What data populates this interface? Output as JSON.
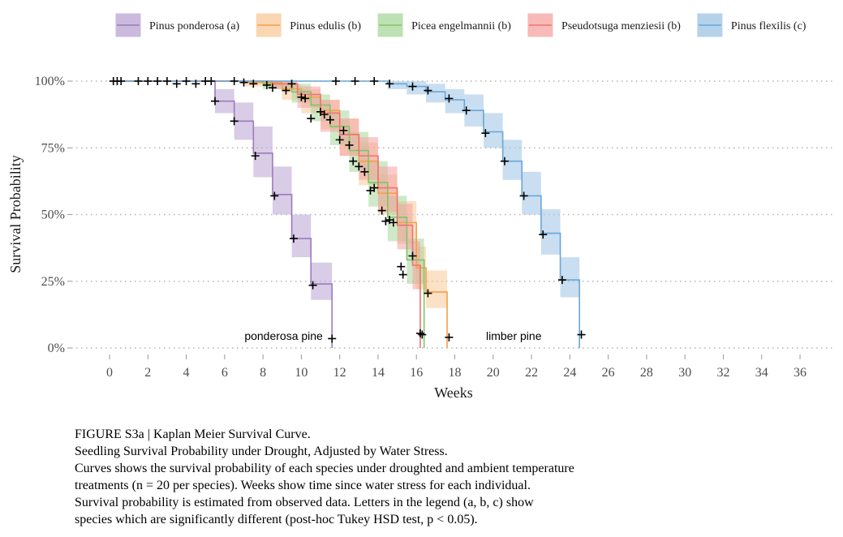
{
  "chart_data": {
    "type": "line",
    "subtype": "kaplan-meier step curves with confidence bands",
    "xlabel": "Weeks",
    "ylabel": "Survival Probability",
    "xlim": [
      -1.5,
      38
    ],
    "ylim": [
      0,
      1
    ],
    "xticks": [
      "0",
      "2",
      "4",
      "6",
      "8",
      "10",
      "12",
      "14",
      "16",
      "18",
      "20",
      "22",
      "24",
      "26",
      "28",
      "30",
      "32",
      "34",
      "36"
    ],
    "yticks": [
      "0%",
      "25%",
      "50%",
      "75%",
      "100%"
    ],
    "grid": "horizontal dotted",
    "legend_position": "top",
    "series": [
      {
        "name": "Pinus ponderosa (a)",
        "color": "#9a7bbf",
        "fill": "#b9a3d3",
        "steps": [
          [
            0,
            1.0
          ],
          [
            5.5,
            0.925
          ],
          [
            6.5,
            0.85
          ],
          [
            7.5,
            0.73
          ],
          [
            8.5,
            0.575
          ],
          [
            9.5,
            0.41
          ],
          [
            10.5,
            0.24
          ],
          [
            11.6,
            0.0
          ]
        ],
        "band": [
          [
            0,
            1.0,
            1.0
          ],
          [
            5.5,
            0.97,
            0.88
          ],
          [
            6.5,
            0.92,
            0.78
          ],
          [
            7.5,
            0.83,
            0.64
          ],
          [
            8.5,
            0.68,
            0.5
          ],
          [
            9.5,
            0.5,
            0.34
          ],
          [
            10.5,
            0.32,
            0.18
          ]
        ],
        "censor": [
          [
            0.2,
            1.0
          ],
          [
            0.4,
            1.0
          ],
          [
            0.6,
            1.0
          ],
          [
            1.5,
            1.0
          ],
          [
            2.0,
            1.0
          ],
          [
            2.5,
            1.0
          ],
          [
            3.0,
            1.0
          ],
          [
            3.5,
            0.99
          ],
          [
            4.0,
            1.0
          ],
          [
            4.5,
            0.99
          ],
          [
            5.0,
            1.0
          ],
          [
            5.3,
            1.0
          ],
          [
            5.5,
            0.925
          ],
          [
            6.5,
            0.85
          ],
          [
            7.6,
            0.72
          ],
          [
            8.6,
            0.57
          ],
          [
            9.6,
            0.41
          ],
          [
            10.6,
            0.235
          ],
          [
            11.6,
            0.035
          ]
        ]
      },
      {
        "name": "Pinus edulis (b)",
        "color": "#f5a04a",
        "fill": "#f8c898",
        "steps": [
          [
            0,
            1.0
          ],
          [
            7,
            0.995
          ],
          [
            9,
            0.97
          ],
          [
            10,
            0.94
          ],
          [
            11,
            0.89
          ],
          [
            12,
            0.8
          ],
          [
            13,
            0.7
          ],
          [
            14,
            0.58
          ],
          [
            15,
            0.47
          ],
          [
            16,
            0.3
          ],
          [
            16.5,
            0.21
          ],
          [
            17.6,
            0.0
          ]
        ],
        "band": [
          [
            0,
            1.0,
            1.0
          ],
          [
            7,
            1.0,
            0.98
          ],
          [
            9,
            0.99,
            0.93
          ],
          [
            10,
            0.97,
            0.88
          ],
          [
            11,
            0.93,
            0.82
          ],
          [
            12,
            0.86,
            0.72
          ],
          [
            13,
            0.77,
            0.61
          ],
          [
            14,
            0.65,
            0.5
          ],
          [
            15,
            0.55,
            0.39
          ],
          [
            16,
            0.38,
            0.22
          ],
          [
            16.5,
            0.29,
            0.15
          ]
        ],
        "censor": [
          [
            6.5,
            1.0
          ],
          [
            7.0,
            0.995
          ],
          [
            7.5,
            0.99
          ],
          [
            8.2,
            0.985
          ],
          [
            8.5,
            0.975
          ],
          [
            9.2,
            0.965
          ],
          [
            10.0,
            0.94
          ],
          [
            10.5,
            0.86
          ],
          [
            11.2,
            0.875
          ],
          [
            12.0,
            0.78
          ],
          [
            12.7,
            0.7
          ],
          [
            13.3,
            0.66
          ],
          [
            13.6,
            0.59
          ],
          [
            14.2,
            0.515
          ],
          [
            14.8,
            0.47
          ],
          [
            15.2,
            0.305
          ],
          [
            15.8,
            0.345
          ],
          [
            16.6,
            0.205
          ],
          [
            17.7,
            0.04
          ]
        ]
      },
      {
        "name": "Picea engelmannii (b)",
        "color": "#7fc56a",
        "fill": "#a8d79b",
        "steps": [
          [
            0,
            1.0
          ],
          [
            8,
            0.99
          ],
          [
            9.5,
            0.96
          ],
          [
            10.5,
            0.91
          ],
          [
            11.5,
            0.83
          ],
          [
            12.5,
            0.74
          ],
          [
            13.5,
            0.62
          ],
          [
            14.5,
            0.49
          ],
          [
            15.5,
            0.33
          ],
          [
            16.4,
            0.0
          ]
        ],
        "band": [
          [
            0,
            1.0,
            1.0
          ],
          [
            8,
            1.0,
            0.97
          ],
          [
            9.5,
            0.99,
            0.92
          ],
          [
            10.5,
            0.95,
            0.85
          ],
          [
            11.5,
            0.89,
            0.76
          ],
          [
            12.5,
            0.81,
            0.66
          ],
          [
            13.5,
            0.7,
            0.53
          ],
          [
            14.5,
            0.57,
            0.4
          ],
          [
            15.5,
            0.41,
            0.24
          ]
        ],
        "censor": [
          [
            9.5,
            0.99
          ],
          [
            11.0,
            0.885
          ],
          [
            12.2,
            0.815
          ],
          [
            13.0,
            0.68
          ],
          [
            14.6,
            0.48
          ],
          [
            16.2,
            0.055
          ]
        ]
      },
      {
        "name": "Pseudotsuga menziesii (b)",
        "color": "#ef7470",
        "fill": "#f4a3a0",
        "steps": [
          [
            0,
            1.0
          ],
          [
            8.5,
            0.99
          ],
          [
            9.8,
            0.95
          ],
          [
            11,
            0.88
          ],
          [
            12,
            0.8
          ],
          [
            13,
            0.72
          ],
          [
            14,
            0.6
          ],
          [
            15,
            0.46
          ],
          [
            15.8,
            0.31
          ],
          [
            16.2,
            0.0
          ]
        ],
        "band": [
          [
            0,
            1.0,
            1.0
          ],
          [
            8.5,
            1.0,
            0.97
          ],
          [
            9.8,
            0.98,
            0.9
          ],
          [
            11,
            0.93,
            0.81
          ],
          [
            12,
            0.86,
            0.72
          ],
          [
            13,
            0.79,
            0.63
          ],
          [
            14,
            0.68,
            0.51
          ],
          [
            15,
            0.54,
            0.37
          ],
          [
            15.8,
            0.4,
            0.22
          ]
        ],
        "censor": [
          [
            10.2,
            0.935
          ],
          [
            11.5,
            0.855
          ],
          [
            12.5,
            0.76
          ],
          [
            13.8,
            0.6
          ],
          [
            14.4,
            0.475
          ],
          [
            15.3,
            0.275
          ],
          [
            16.3,
            0.05
          ]
        ]
      },
      {
        "name": "Pinus flexilis (c)",
        "color": "#6aa6d6",
        "fill": "#9cc3e4",
        "steps": [
          [
            0,
            1.0
          ],
          [
            14.5,
            0.99
          ],
          [
            15.5,
            0.98
          ],
          [
            16.5,
            0.96
          ],
          [
            17.5,
            0.93
          ],
          [
            18.5,
            0.89
          ],
          [
            19.5,
            0.81
          ],
          [
            20.5,
            0.7
          ],
          [
            21.5,
            0.57
          ],
          [
            22.5,
            0.43
          ],
          [
            23.5,
            0.255
          ],
          [
            24.5,
            0.0
          ]
        ],
        "band": [
          [
            0,
            1.0,
            1.0
          ],
          [
            14.5,
            1.0,
            0.97
          ],
          [
            15.5,
            1.0,
            0.95
          ],
          [
            16.5,
            0.99,
            0.92
          ],
          [
            17.5,
            0.97,
            0.88
          ],
          [
            18.5,
            0.95,
            0.83
          ],
          [
            19.5,
            0.88,
            0.75
          ],
          [
            20.5,
            0.78,
            0.63
          ],
          [
            21.5,
            0.66,
            0.5
          ],
          [
            22.5,
            0.52,
            0.35
          ],
          [
            23.5,
            0.34,
            0.19
          ]
        ],
        "censor": [
          [
            11.8,
            1.0
          ],
          [
            12.8,
            1.0
          ],
          [
            13.8,
            1.0
          ],
          [
            14.6,
            0.99
          ],
          [
            15.8,
            0.98
          ],
          [
            16.6,
            0.965
          ],
          [
            17.7,
            0.935
          ],
          [
            18.6,
            0.89
          ],
          [
            19.6,
            0.805
          ],
          [
            20.6,
            0.7
          ],
          [
            21.6,
            0.57
          ],
          [
            22.6,
            0.425
          ],
          [
            23.6,
            0.255
          ],
          [
            24.6,
            0.05
          ]
        ]
      }
    ],
    "annotations": [
      {
        "text": "ponderosa pine",
        "x": 9.5,
        "y": 0.045
      },
      {
        "text": "limber pine",
        "x": 21.5,
        "y": 0.045
      }
    ]
  },
  "caption": {
    "lines": [
      "FIGURE S3a | Kaplan Meier Survival Curve.",
      "Seedling Survival Probability under Drought, Adjusted by Water Stress.",
      "Curves shows the survival probability of each species under droughted and ambient temperature",
      "treatments (n = 20 per species). Weeks show time since water stress for each individual.",
      "Survival probability is estimated from observed data. Letters in the legend (a, b, c) show",
      "species which are significantly different (post-hoc Tukey HSD test, p < 0.05)."
    ]
  }
}
